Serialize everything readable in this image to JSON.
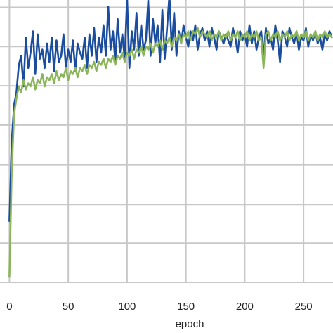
{
  "chart_data": {
    "type": "line",
    "title": "",
    "xlabel": "epoch",
    "ylabel": "",
    "xlim": [
      -8,
      275
    ],
    "ylim": [
      0,
      1
    ],
    "x_ticks": [
      0,
      50,
      100,
      150,
      200,
      250
    ],
    "x_tick_labels": [
      "0",
      "50",
      "100",
      "150",
      "200",
      "250"
    ],
    "y_grid": [
      0.0,
      0.128,
      0.254,
      0.384,
      0.514,
      0.642,
      0.77,
      0.898
    ],
    "grid": true,
    "series": [
      {
        "color": "#1a4d9e",
        "values": [
          [
            0,
            0.2
          ],
          [
            2,
            0.46
          ],
          [
            4,
            0.58
          ],
          [
            6,
            0.62
          ],
          [
            8,
            0.71
          ],
          [
            10,
            0.74
          ],
          [
            12,
            0.64
          ],
          [
            14,
            0.8
          ],
          [
            16,
            0.7
          ],
          [
            18,
            0.75
          ],
          [
            20,
            0.82
          ],
          [
            22,
            0.68
          ],
          [
            24,
            0.81
          ],
          [
            26,
            0.73
          ],
          [
            28,
            0.76
          ],
          [
            30,
            0.7
          ],
          [
            32,
            0.78
          ],
          [
            34,
            0.72
          ],
          [
            36,
            0.8
          ],
          [
            38,
            0.69
          ],
          [
            40,
            0.79
          ],
          [
            42,
            0.72
          ],
          [
            44,
            0.74
          ],
          [
            46,
            0.81
          ],
          [
            48,
            0.7
          ],
          [
            50,
            0.76
          ],
          [
            52,
            0.72
          ],
          [
            54,
            0.79
          ],
          [
            56,
            0.69
          ],
          [
            58,
            0.78
          ],
          [
            60,
            0.75
          ],
          [
            62,
            0.73
          ],
          [
            64,
            0.8
          ],
          [
            66,
            0.7
          ],
          [
            68,
            0.81
          ],
          [
            70,
            0.74
          ],
          [
            72,
            0.83
          ],
          [
            74,
            0.72
          ],
          [
            76,
            0.8
          ],
          [
            78,
            0.75
          ],
          [
            80,
            0.84
          ],
          [
            82,
            0.74
          ],
          [
            84,
            0.9
          ],
          [
            86,
            0.76
          ],
          [
            88,
            0.82
          ],
          [
            90,
            0.72
          ],
          [
            92,
            0.86
          ],
          [
            94,
            0.75
          ],
          [
            96,
            0.81
          ],
          [
            98,
            0.73
          ],
          [
            100,
            0.93
          ],
          [
            102,
            0.7
          ],
          [
            104,
            0.82
          ],
          [
            106,
            0.76
          ],
          [
            108,
            0.88
          ],
          [
            110,
            0.74
          ],
          [
            112,
            0.84
          ],
          [
            114,
            0.76
          ],
          [
            116,
            0.79
          ],
          [
            118,
            0.92
          ],
          [
            120,
            0.74
          ],
          [
            122,
            0.86
          ],
          [
            124,
            0.78
          ],
          [
            126,
            0.84
          ],
          [
            128,
            0.72
          ],
          [
            130,
            0.89
          ],
          [
            132,
            0.73
          ],
          [
            134,
            0.83
          ],
          [
            136,
            0.94
          ],
          [
            138,
            0.76
          ],
          [
            140,
            0.88
          ],
          [
            142,
            0.74
          ],
          [
            144,
            0.82
          ],
          [
            146,
            0.78
          ],
          [
            148,
            0.84
          ],
          [
            150,
            0.8
          ],
          [
            152,
            0.77
          ],
          [
            154,
            0.82
          ],
          [
            156,
            0.79
          ],
          [
            158,
            0.84
          ],
          [
            160,
            0.76
          ],
          [
            162,
            0.81
          ],
          [
            164,
            0.83
          ],
          [
            166,
            0.79
          ],
          [
            168,
            0.82
          ],
          [
            170,
            0.77
          ],
          [
            172,
            0.83
          ],
          [
            174,
            0.8
          ],
          [
            176,
            0.76
          ],
          [
            178,
            0.82
          ],
          [
            180,
            0.8
          ],
          [
            182,
            0.78
          ],
          [
            184,
            0.81
          ],
          [
            186,
            0.79
          ],
          [
            188,
            0.77
          ],
          [
            190,
            0.83
          ],
          [
            192,
            0.8
          ],
          [
            194,
            0.75
          ],
          [
            196,
            0.82
          ],
          [
            198,
            0.79
          ],
          [
            200,
            0.81
          ],
          [
            202,
            0.77
          ],
          [
            204,
            0.84
          ],
          [
            206,
            0.78
          ],
          [
            208,
            0.82
          ],
          [
            210,
            0.76
          ],
          [
            212,
            0.8
          ],
          [
            214,
            0.82
          ],
          [
            216,
            0.74
          ],
          [
            218,
            0.83
          ],
          [
            220,
            0.78
          ],
          [
            222,
            0.8
          ],
          [
            224,
            0.76
          ],
          [
            226,
            0.84
          ],
          [
            228,
            0.79
          ],
          [
            230,
            0.72
          ],
          [
            232,
            0.82
          ],
          [
            234,
            0.8
          ],
          [
            236,
            0.77
          ],
          [
            238,
            0.83
          ],
          [
            240,
            0.8
          ],
          [
            242,
            0.78
          ],
          [
            244,
            0.82
          ],
          [
            246,
            0.76
          ],
          [
            248,
            0.8
          ],
          [
            250,
            0.79
          ],
          [
            252,
            0.83
          ],
          [
            254,
            0.77
          ],
          [
            256,
            0.81
          ],
          [
            258,
            0.79
          ],
          [
            260,
            0.82
          ],
          [
            262,
            0.78
          ],
          [
            264,
            0.8
          ],
          [
            266,
            0.76
          ],
          [
            268,
            0.81
          ],
          [
            270,
            0.79
          ],
          [
            272,
            0.82
          ],
          [
            274,
            0.8
          ]
        ]
      },
      {
        "color": "#8ab55a",
        "values": [
          [
            0,
            0.02
          ],
          [
            2,
            0.36
          ],
          [
            4,
            0.55
          ],
          [
            6,
            0.6
          ],
          [
            8,
            0.64
          ],
          [
            10,
            0.62
          ],
          [
            12,
            0.66
          ],
          [
            14,
            0.63
          ],
          [
            16,
            0.65
          ],
          [
            18,
            0.64
          ],
          [
            20,
            0.67
          ],
          [
            22,
            0.63
          ],
          [
            24,
            0.66
          ],
          [
            26,
            0.65
          ],
          [
            28,
            0.68
          ],
          [
            30,
            0.64
          ],
          [
            32,
            0.67
          ],
          [
            34,
            0.66
          ],
          [
            36,
            0.68
          ],
          [
            38,
            0.65
          ],
          [
            40,
            0.69
          ],
          [
            42,
            0.66
          ],
          [
            44,
            0.68
          ],
          [
            46,
            0.67
          ],
          [
            48,
            0.7
          ],
          [
            50,
            0.66
          ],
          [
            52,
            0.69
          ],
          [
            54,
            0.68
          ],
          [
            56,
            0.7
          ],
          [
            58,
            0.67
          ],
          [
            60,
            0.7
          ],
          [
            62,
            0.69
          ],
          [
            64,
            0.71
          ],
          [
            66,
            0.68
          ],
          [
            68,
            0.71
          ],
          [
            70,
            0.7
          ],
          [
            72,
            0.72
          ],
          [
            74,
            0.69
          ],
          [
            76,
            0.72
          ],
          [
            78,
            0.71
          ],
          [
            80,
            0.73
          ],
          [
            82,
            0.7
          ],
          [
            84,
            0.73
          ],
          [
            86,
            0.72
          ],
          [
            88,
            0.74
          ],
          [
            90,
            0.71
          ],
          [
            92,
            0.74
          ],
          [
            94,
            0.73
          ],
          [
            96,
            0.75
          ],
          [
            98,
            0.72
          ],
          [
            100,
            0.75
          ],
          [
            102,
            0.74
          ],
          [
            104,
            0.76
          ],
          [
            106,
            0.73
          ],
          [
            108,
            0.76
          ],
          [
            110,
            0.75
          ],
          [
            112,
            0.77
          ],
          [
            114,
            0.74
          ],
          [
            116,
            0.77
          ],
          [
            118,
            0.76
          ],
          [
            120,
            0.78
          ],
          [
            122,
            0.75
          ],
          [
            124,
            0.78
          ],
          [
            126,
            0.77
          ],
          [
            128,
            0.79
          ],
          [
            130,
            0.76
          ],
          [
            132,
            0.79
          ],
          [
            134,
            0.78
          ],
          [
            136,
            0.8
          ],
          [
            138,
            0.77
          ],
          [
            140,
            0.8
          ],
          [
            142,
            0.79
          ],
          [
            144,
            0.81
          ],
          [
            146,
            0.78
          ],
          [
            148,
            0.81
          ],
          [
            150,
            0.8
          ],
          [
            152,
            0.82
          ],
          [
            154,
            0.79
          ],
          [
            156,
            0.82
          ],
          [
            158,
            0.81
          ],
          [
            160,
            0.83
          ],
          [
            162,
            0.8
          ],
          [
            164,
            0.82
          ],
          [
            166,
            0.81
          ],
          [
            168,
            0.8
          ],
          [
            170,
            0.82
          ],
          [
            172,
            0.79
          ],
          [
            174,
            0.81
          ],
          [
            176,
            0.8
          ],
          [
            178,
            0.82
          ],
          [
            180,
            0.79
          ],
          [
            182,
            0.81
          ],
          [
            184,
            0.8
          ],
          [
            186,
            0.82
          ],
          [
            188,
            0.79
          ],
          [
            190,
            0.81
          ],
          [
            192,
            0.8
          ],
          [
            194,
            0.82
          ],
          [
            196,
            0.79
          ],
          [
            198,
            0.81
          ],
          [
            200,
            0.8
          ],
          [
            202,
            0.82
          ],
          [
            204,
            0.79
          ],
          [
            206,
            0.81
          ],
          [
            208,
            0.8
          ],
          [
            210,
            0.82
          ],
          [
            212,
            0.79
          ],
          [
            214,
            0.8
          ],
          [
            216,
            0.7
          ],
          [
            218,
            0.81
          ],
          [
            220,
            0.82
          ],
          [
            222,
            0.79
          ],
          [
            224,
            0.81
          ],
          [
            226,
            0.8
          ],
          [
            228,
            0.82
          ],
          [
            230,
            0.79
          ],
          [
            232,
            0.81
          ],
          [
            234,
            0.8
          ],
          [
            236,
            0.82
          ],
          [
            238,
            0.79
          ],
          [
            240,
            0.81
          ],
          [
            242,
            0.8
          ],
          [
            244,
            0.82
          ],
          [
            246,
            0.79
          ],
          [
            248,
            0.81
          ],
          [
            250,
            0.8
          ],
          [
            252,
            0.82
          ],
          [
            254,
            0.79
          ],
          [
            256,
            0.81
          ],
          [
            258,
            0.8
          ],
          [
            260,
            0.82
          ],
          [
            262,
            0.79
          ],
          [
            264,
            0.81
          ],
          [
            266,
            0.8
          ],
          [
            268,
            0.82
          ],
          [
            270,
            0.8
          ],
          [
            272,
            0.81
          ],
          [
            274,
            0.8
          ]
        ]
      }
    ]
  }
}
